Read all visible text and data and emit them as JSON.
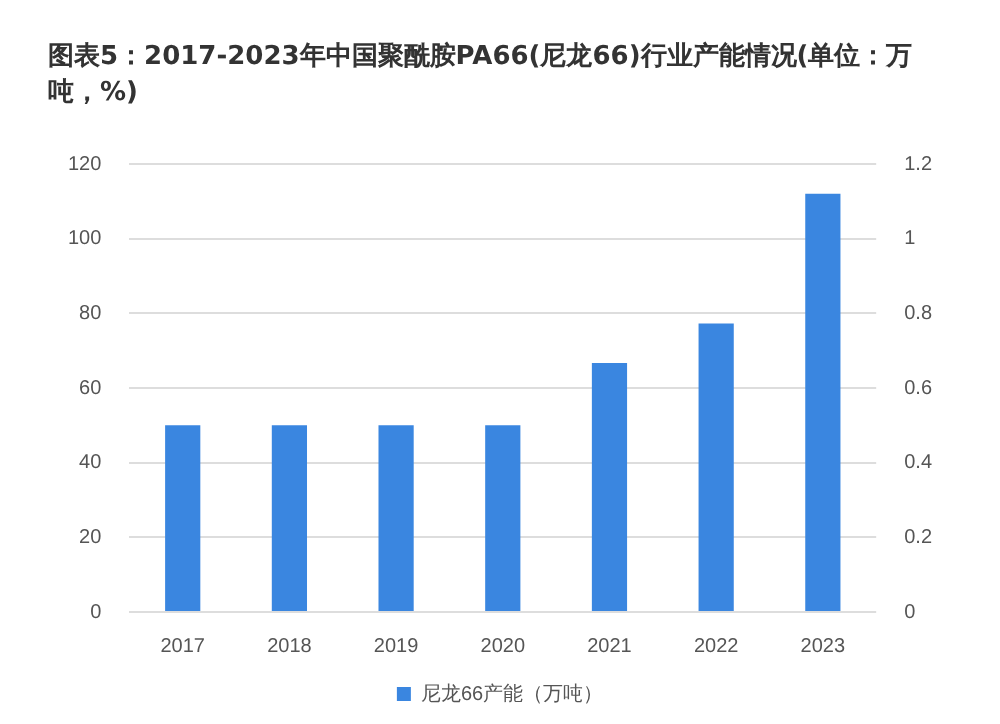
{
  "chart_data": {
    "type": "bar",
    "title": "图表5：2017-2023年中国聚酰胺PA66(尼龙66)行业产能情况(单位：万吨，%)",
    "categories": [
      "2017",
      "2018",
      "2019",
      "2020",
      "2021",
      "2022",
      "2023"
    ],
    "series": [
      {
        "name": "尼龙66产能（万吨）",
        "color": "#3a86e0",
        "values": [
          50,
          50,
          50,
          50,
          66.7,
          77.3,
          112
        ]
      }
    ],
    "ylim": [
      0,
      120
    ],
    "yticks": [
      0,
      20,
      40,
      60,
      80,
      100,
      120
    ],
    "y2lim": [
      0,
      1.2
    ],
    "y2ticks": [
      0,
      0.2,
      0.4,
      0.6,
      0.8,
      1,
      1.2
    ],
    "grid": "y",
    "legend": "bottom"
  }
}
